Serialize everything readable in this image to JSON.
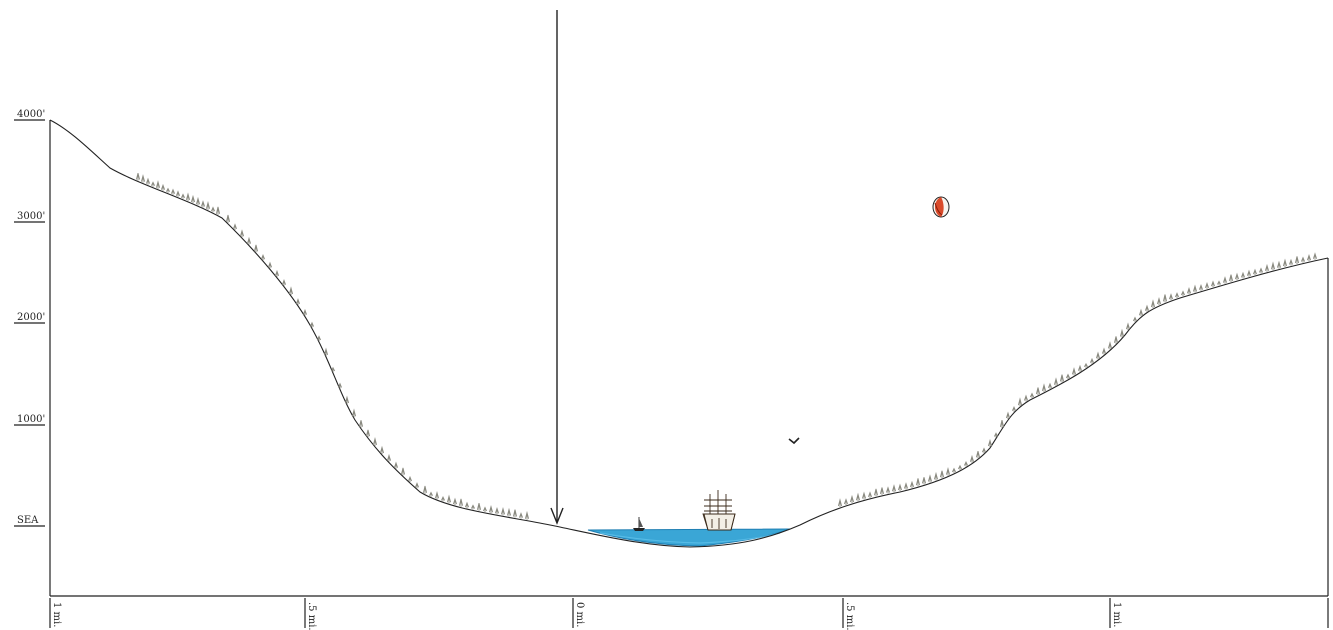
{
  "elevation_labels": [
    {
      "label": "4000'",
      "value": 4000
    },
    {
      "label": "3000'",
      "value": 3000
    },
    {
      "label": "2000'",
      "value": 2000
    },
    {
      "label": "1000'",
      "value": 1000
    },
    {
      "label": "SEA",
      "value": 0
    }
  ],
  "distance_labels": [
    {
      "label": "1 mi.",
      "value": -1.0
    },
    {
      "label": ".5 mi.",
      "value": -0.5
    },
    {
      "label": "0 mi.",
      "value": 0.0
    },
    {
      "label": ".5 mi.",
      "value": 0.5
    },
    {
      "label": "1 mi.",
      "value": 1.0
    }
  ],
  "colors": {
    "ink": "#222222",
    "water": "#3aa6d6",
    "water_dark": "#1f7fb3",
    "trees": "#8a8a80",
    "balloon": "#d94a2a"
  },
  "icons": [
    "arrow-down-icon",
    "sailboat-icon",
    "ship-icon",
    "bird-icon",
    "balloon-icon",
    "tree-icon"
  ]
}
